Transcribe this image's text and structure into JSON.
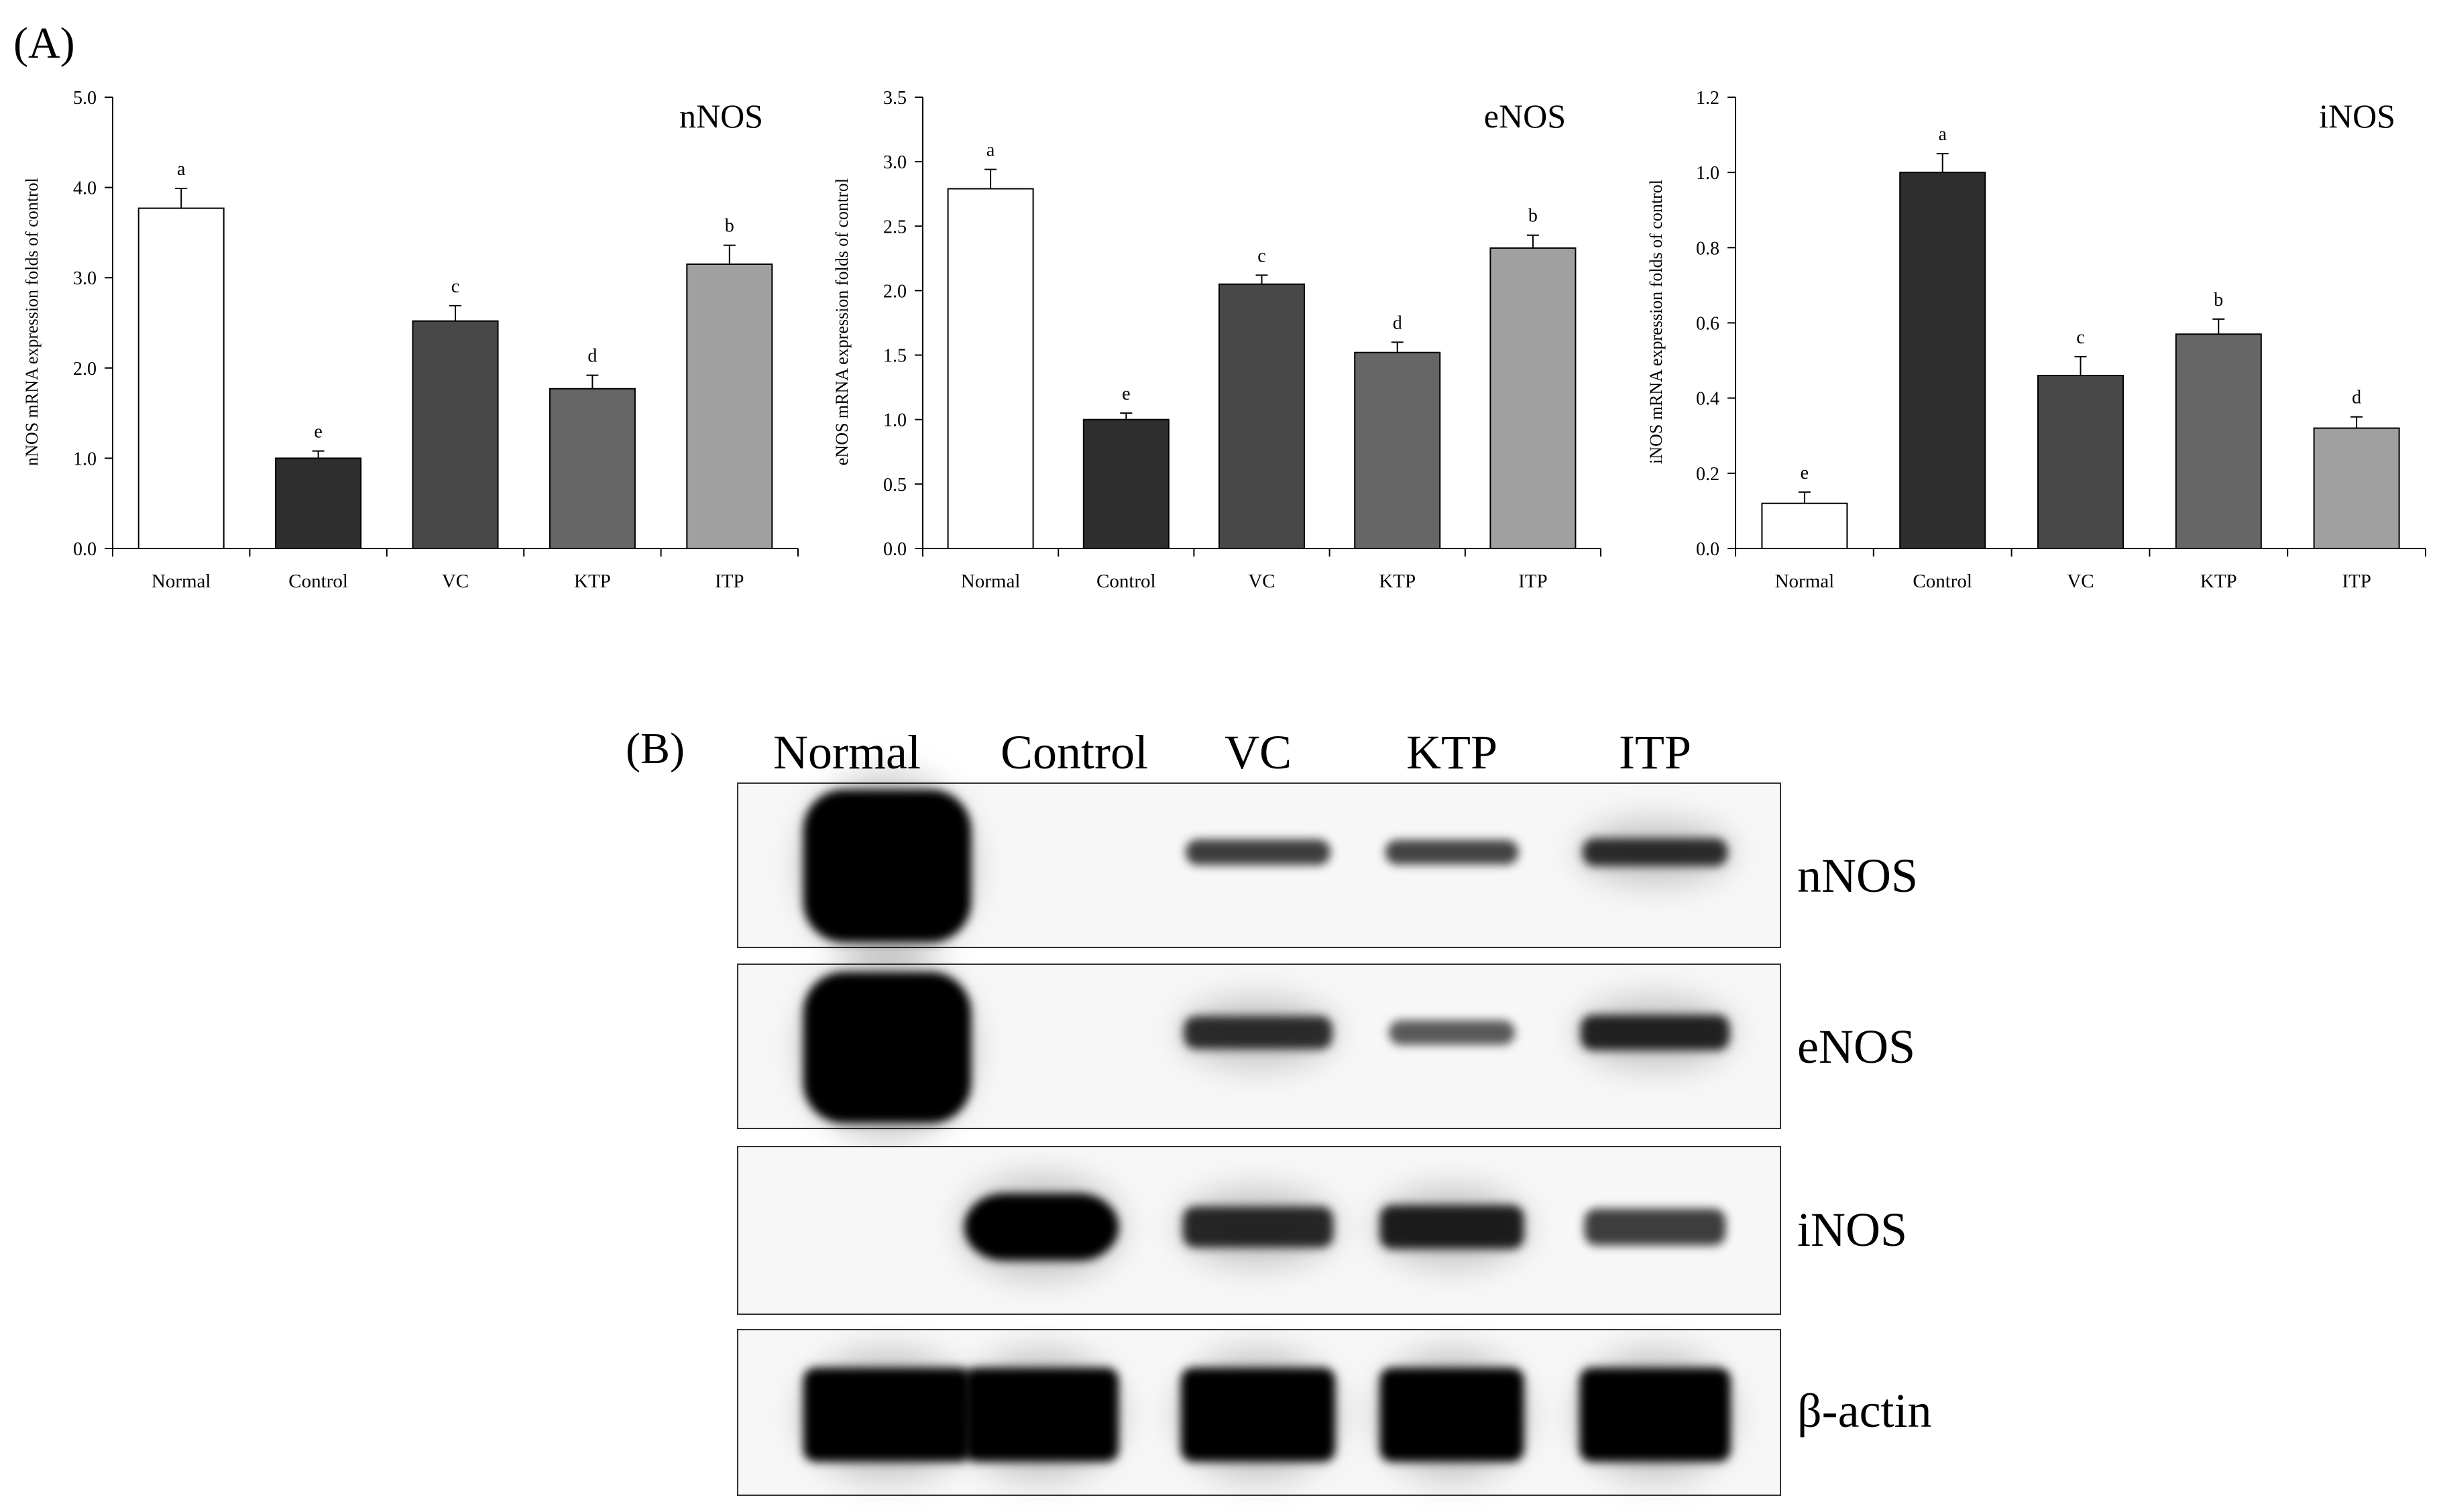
{
  "panel_a_label": "(A)",
  "panel_b_label": "(B)",
  "chart_data": [
    {
      "type": "bar",
      "title": "nNOS",
      "ylabel": "nNOS mRNA expression folds of control",
      "xlabel": "",
      "ylim": [
        0,
        5.0
      ],
      "yticks": [
        "0.0",
        "1.0",
        "2.0",
        "3.0",
        "4.0",
        "5.0"
      ],
      "categories": [
        "Normal",
        "Control",
        "VC",
        "KTP",
        "ITP"
      ],
      "values": [
        3.77,
        1.0,
        2.52,
        1.77,
        3.15
      ],
      "errors": [
        0.22,
        0.08,
        0.17,
        0.15,
        0.21
      ],
      "letters": [
        "a",
        "e",
        "c",
        "d",
        "b"
      ],
      "colors": [
        "#ffffff",
        "#2e2e2e",
        "#484848",
        "#666666",
        "#a0a0a0"
      ]
    },
    {
      "type": "bar",
      "title": "eNOS",
      "ylabel": "eNOS mRNA expression folds of control",
      "xlabel": "",
      "ylim": [
        0,
        3.5
      ],
      "yticks": [
        "0.0",
        "0.5",
        "1.0",
        "1.5",
        "2.0",
        "2.5",
        "3.0",
        "3.5"
      ],
      "categories": [
        "Normal",
        "Control",
        "VC",
        "KTP",
        "ITP"
      ],
      "values": [
        2.79,
        1.0,
        2.05,
        1.52,
        2.33
      ],
      "errors": [
        0.15,
        0.05,
        0.07,
        0.08,
        0.1
      ],
      "letters": [
        "a",
        "e",
        "c",
        "d",
        "b"
      ],
      "colors": [
        "#ffffff",
        "#2e2e2e",
        "#484848",
        "#666666",
        "#a0a0a0"
      ]
    },
    {
      "type": "bar",
      "title": "iNOS",
      "ylabel": "iNOS mRNA expression folds of control",
      "xlabel": "",
      "ylim": [
        0,
        1.2
      ],
      "yticks": [
        "0.0",
        "0.2",
        "0.4",
        "0.6",
        "0.8",
        "1.0",
        "1.2"
      ],
      "categories": [
        "Normal",
        "Control",
        "VC",
        "KTP",
        "ITP"
      ],
      "values": [
        0.12,
        1.0,
        0.46,
        0.57,
        0.32
      ],
      "errors": [
        0.03,
        0.05,
        0.05,
        0.04,
        0.03
      ],
      "letters": [
        "e",
        "a",
        "c",
        "b",
        "d"
      ],
      "colors": [
        "#ffffff",
        "#2e2e2e",
        "#484848",
        "#666666",
        "#a0a0a0"
      ]
    }
  ],
  "blot": {
    "lanes": [
      "Normal",
      "Control",
      "VC",
      "KTP",
      "ITP"
    ],
    "rows": [
      {
        "label": "nNOS",
        "intensity": [
          1.0,
          0.0,
          0.45,
          0.4,
          0.55
        ]
      },
      {
        "label": "eNOS",
        "intensity": [
          1.0,
          0.0,
          0.55,
          0.2,
          0.65
        ]
      },
      {
        "label": "iNOS",
        "intensity": [
          0.0,
          1.0,
          0.6,
          0.7,
          0.45
        ]
      },
      {
        "label": "β-actin",
        "intensity": [
          1.0,
          1.0,
          1.0,
          1.0,
          1.0
        ]
      }
    ]
  }
}
